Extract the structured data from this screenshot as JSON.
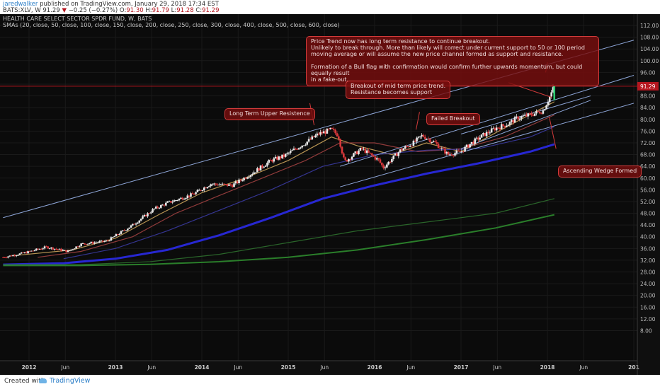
{
  "header": {
    "author": "jaredwalker",
    "published_text": " published on TradingView.com, January 29, 2018 17:34 EST",
    "symbol_prefix": "BATS:XLV, W  91.29",
    "change_arrow": "▼",
    "change": "−0.25 (−0.27%)",
    "o_label": "O:",
    "o_value": "91.30",
    "h_label": "H:",
    "h_value": "91.79",
    "l_label": "L:",
    "l_value": "91.28",
    "c_label": "C:",
    "c_value": "91.29"
  },
  "legend": {
    "line1": "HEALTH CARE SELECT SECTOR SPDR FUND, W, BATS",
    "line2": "SMAs (20, close, 50, close, 100, close, 150, close, 200, close, 250, close, 300, close, 400, close, 500, close, 600, close)"
  },
  "annotations": {
    "price_trend": "Price Trend now has long term resistance to continue breakout.\nUnlikely to break through. More than likely will correct under current support to 50 or 100 period\nmoving average or will assume the new price channel formed as support and resistance.\n\nFormation of a Bull flag with confirmation would confirm further upwards momentum, but could equally result\nin a fake-out.",
    "breakout_mid": "Breakout of mid term price trend.\nResistance becomes support",
    "long_term": "Long Term Upper Resistence",
    "failed": "Failed Breakout",
    "wedge": "Ascending Wedge Formed"
  },
  "price_label": "91.29",
  "footer": {
    "created_with": "Created with",
    "brand": "TradingView"
  },
  "colors": {
    "background": "#0b0b0b",
    "up_candle": "#e8e8e8",
    "down_candle": "#d9393b",
    "sma_200": "#2a2ae8",
    "sma_long": "#2e8b2e",
    "trendline": "#8ea6d8",
    "price_line": "#b5161f",
    "annotation_fill": "#7a0e0e"
  },
  "chart_data": {
    "type": "candlestick",
    "symbol": "BATS:XLV",
    "timeframe": "W",
    "y_axis": {
      "min": 2,
      "max": 114,
      "step": 4,
      "ticks": [
        "112.00",
        "108.00",
        "104.00",
        "100.00",
        "96.00",
        "92.00",
        "88.00",
        "84.00",
        "80.00",
        "76.00",
        "72.00",
        "68.00",
        "64.00",
        "60.00",
        "56.00",
        "52.00",
        "48.00",
        "44.00",
        "40.00",
        "36.00",
        "32.00",
        "28.00",
        "24.00",
        "20.00",
        "16.00",
        "12.00",
        "8.00"
      ]
    },
    "x_axis": {
      "ticks": [
        "2012",
        "Jun",
        "2013",
        "Jun",
        "2014",
        "Jun",
        "2015",
        "Jun",
        "2016",
        "Jun",
        "2017",
        "Jun",
        "2018",
        "Jun",
        "201"
      ],
      "tick_times": [
        2012.0,
        2012.42,
        2013.0,
        2013.42,
        2014.0,
        2014.42,
        2015.0,
        2015.42,
        2016.0,
        2016.42,
        2017.0,
        2017.42,
        2018.0,
        2018.42,
        2019.0
      ]
    },
    "last_close": 91.29,
    "price_path": [
      [
        2011.7,
        33.0
      ],
      [
        2011.95,
        34.5
      ],
      [
        2012.2,
        36.5
      ],
      [
        2012.45,
        35.0
      ],
      [
        2012.6,
        37.5
      ],
      [
        2012.9,
        38.5
      ],
      [
        2013.2,
        44.0
      ],
      [
        2013.45,
        49.5
      ],
      [
        2013.6,
        51.5
      ],
      [
        2013.9,
        54.5
      ],
      [
        2014.1,
        58.0
      ],
      [
        2014.35,
        57.5
      ],
      [
        2014.6,
        62.0
      ],
      [
        2014.8,
        66.0
      ],
      [
        2014.95,
        67.5
      ],
      [
        2015.2,
        72.0
      ],
      [
        2015.35,
        75.0
      ],
      [
        2015.5,
        76.5
      ],
      [
        2015.58,
        74.5
      ],
      [
        2015.65,
        65.5
      ],
      [
        2015.85,
        70.0
      ],
      [
        2016.05,
        66.0
      ],
      [
        2016.1,
        63.5
      ],
      [
        2016.3,
        69.5
      ],
      [
        2016.45,
        72.0
      ],
      [
        2016.55,
        74.5
      ],
      [
        2016.7,
        72.0
      ],
      [
        2016.85,
        68.0
      ],
      [
        2017.0,
        69.0
      ],
      [
        2017.1,
        71.5
      ],
      [
        2017.25,
        74.5
      ],
      [
        2017.4,
        77.0
      ],
      [
        2017.55,
        78.5
      ],
      [
        2017.65,
        80.5
      ],
      [
        2017.8,
        81.5
      ],
      [
        2017.95,
        83.0
      ],
      [
        2018.0,
        86.0
      ],
      [
        2018.08,
        91.29
      ]
    ],
    "sma": [
      {
        "period": 20,
        "color": "#c9a25a",
        "points": [
          [
            2011.8,
            33.5
          ],
          [
            2012.5,
            35.5
          ],
          [
            2013.0,
            39.5
          ],
          [
            2013.5,
            47.5
          ],
          [
            2014.0,
            55
          ],
          [
            2014.5,
            60
          ],
          [
            2015.0,
            66
          ],
          [
            2015.5,
            74
          ],
          [
            2015.8,
            71
          ],
          [
            2016.2,
            68
          ],
          [
            2016.6,
            72
          ],
          [
            2017.0,
            69
          ],
          [
            2017.5,
            77
          ],
          [
            2018.08,
            86
          ]
        ]
      },
      {
        "period": 50,
        "color": "#a04040",
        "points": [
          [
            2012.1,
            33
          ],
          [
            2012.6,
            35
          ],
          [
            2013.2,
            40
          ],
          [
            2013.7,
            48
          ],
          [
            2014.2,
            54
          ],
          [
            2014.7,
            60
          ],
          [
            2015.2,
            66
          ],
          [
            2015.6,
            72
          ],
          [
            2016.0,
            72
          ],
          [
            2016.5,
            69
          ],
          [
            2017.0,
            70
          ],
          [
            2017.5,
            74
          ],
          [
            2018.08,
            81.5
          ]
        ]
      },
      {
        "period": 100,
        "color": "#3a3aa0",
        "points": [
          [
            2012.4,
            32.5
          ],
          [
            2013.0,
            36
          ],
          [
            2013.6,
            42
          ],
          [
            2014.2,
            49
          ],
          [
            2014.8,
            56
          ],
          [
            2015.4,
            64
          ],
          [
            2016.0,
            68
          ],
          [
            2016.6,
            69.5
          ],
          [
            2017.2,
            70
          ],
          [
            2017.8,
            74
          ],
          [
            2018.08,
            77.5
          ]
        ]
      },
      {
        "period": 200,
        "color": "#2a2ae8",
        "points": [
          [
            2011.7,
            30.5
          ],
          [
            2012.4,
            31
          ],
          [
            2013.0,
            32.5
          ],
          [
            2013.6,
            35.5
          ],
          [
            2014.2,
            40.5
          ],
          [
            2014.8,
            46.5
          ],
          [
            2015.4,
            53
          ],
          [
            2016.0,
            57.5
          ],
          [
            2016.6,
            61.5
          ],
          [
            2017.2,
            65
          ],
          [
            2017.8,
            69
          ],
          [
            2018.08,
            71.5
          ]
        ]
      },
      {
        "period": 300,
        "color": "#2e6f2e",
        "points": [
          [
            2011.7,
            30.5
          ],
          [
            2012.6,
            30.5
          ],
          [
            2013.4,
            31.5
          ],
          [
            2014.2,
            34
          ],
          [
            2015.0,
            38
          ],
          [
            2015.8,
            42
          ],
          [
            2016.6,
            45
          ],
          [
            2017.4,
            48
          ],
          [
            2018.08,
            53
          ]
        ]
      },
      {
        "period": 600,
        "color": "#2e8b2e",
        "points": [
          [
            2011.7,
            30.2
          ],
          [
            2012.6,
            30.2
          ],
          [
            2013.4,
            30.6
          ],
          [
            2014.2,
            31.5
          ],
          [
            2015.0,
            33
          ],
          [
            2015.8,
            35.5
          ],
          [
            2016.6,
            39
          ],
          [
            2017.4,
            43
          ],
          [
            2018.08,
            47.5
          ]
        ]
      }
    ],
    "trendlines": [
      {
        "name": "long-term-upper",
        "from": [
          2011.7,
          46.5
        ],
        "to": [
          2019.0,
          107.0
        ]
      },
      {
        "name": "channel-upper",
        "from": [
          2015.6,
          64.0
        ],
        "to": [
          2019.0,
          95.0
        ]
      },
      {
        "name": "channel-lower",
        "from": [
          2015.6,
          57.0
        ],
        "to": [
          2019.0,
          85.5
        ]
      },
      {
        "name": "wedge-upper",
        "from": [
          2017.0,
          75.0
        ],
        "to": [
          2018.5,
          88.0
        ]
      },
      {
        "name": "wedge-lower",
        "from": [
          2017.0,
          70.0
        ],
        "to": [
          2018.5,
          86.5
        ]
      }
    ],
    "horizontal_line": 91.29
  }
}
